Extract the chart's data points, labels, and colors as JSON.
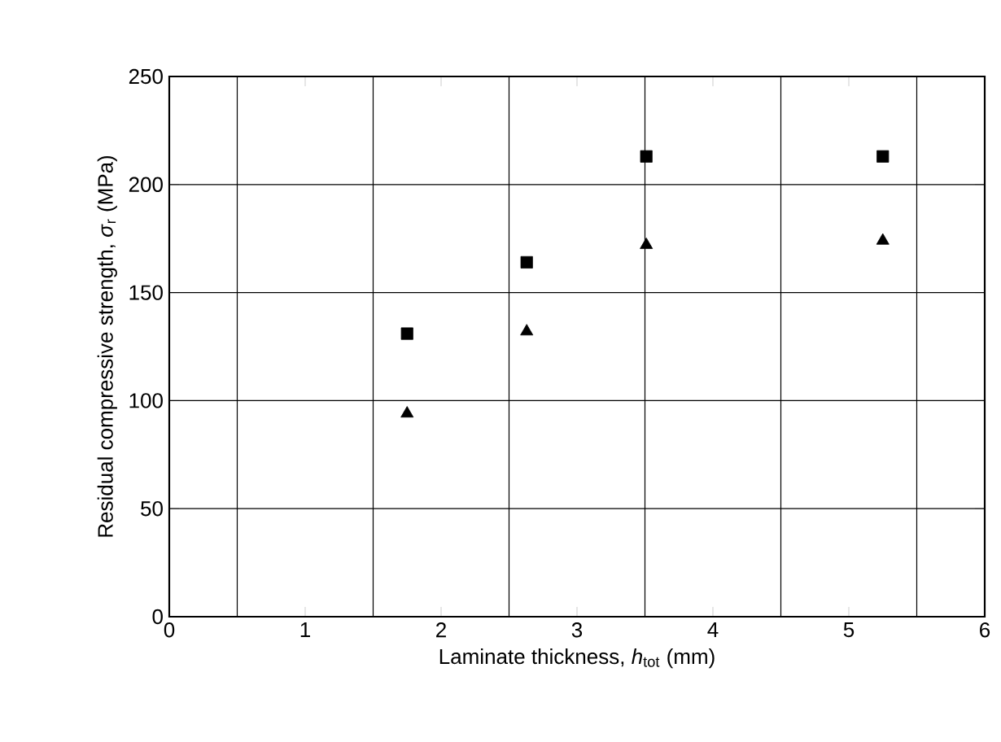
{
  "chart_data": {
    "type": "scatter",
    "xlabel": "Laminate thickness, *h*$_{tot}$ (mm)",
    "ylabel": "Residual compressive strength, *σ*$_{r}$ (MPa)",
    "x": [
      1.75,
      2.63,
      3.51,
      5.25
    ],
    "series": [
      {
        "color": "#000000",
        "marker": "square",
        "values": [
          131,
          164,
          213,
          213
        ]
      },
      {
        "color": "#000000",
        "marker": "triangle",
        "values": [
          94,
          132,
          172,
          174
        ]
      }
    ],
    "xlim": [
      0,
      6
    ],
    "ylim": [
      0,
      250
    ],
    "xticks": [
      0,
      {
        "value": 0.5,
        "label": null
      },
      1,
      {
        "value": 1.5,
        "label": null
      },
      2,
      {
        "value": 2.5,
        "label": null
      },
      3,
      {
        "value": 3.5,
        "label": null
      },
      4,
      {
        "value": 4.5,
        "label": null
      },
      5,
      {
        "value": 5.5,
        "label": null
      },
      6
    ],
    "yticks": [
      0,
      50,
      100,
      150,
      200,
      250
    ],
    "grid": true
  }
}
